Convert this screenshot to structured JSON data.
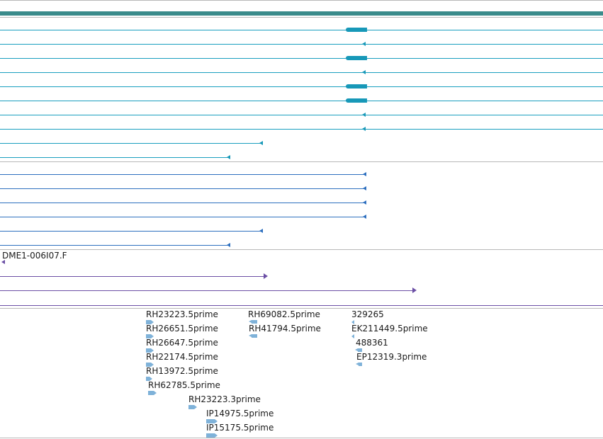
{
  "colors": {
    "gene_bar": "#3a8b8b",
    "transcript": "#1a9fbf",
    "cds": "#1798b8",
    "protein": "#2d6fbf",
    "clone": "#6b4fa5",
    "est": "#7fb2d9",
    "separator": "#b8b8b8"
  },
  "tracks": {
    "gene_model_transcripts": 8,
    "short_transcripts": 2,
    "protein_alignments": 6
  },
  "clone": {
    "label": "DME1-006I07.F"
  },
  "est_labels": {
    "col1": [
      "RH23223.5prime",
      "RH26651.5prime",
      "RH26647.5prime",
      "RH22174.5prime",
      "RH13972.5prime",
      "RH62785.5prime",
      "RH23223.3prime",
      "IP14975.5prime",
      "IP15175.5prime"
    ],
    "col2": [
      "RH69082.5prime",
      "RH41794.5prime"
    ],
    "col3": [
      "329265",
      "EK211449.5prime",
      "488361",
      "EP12319.3prime"
    ]
  }
}
